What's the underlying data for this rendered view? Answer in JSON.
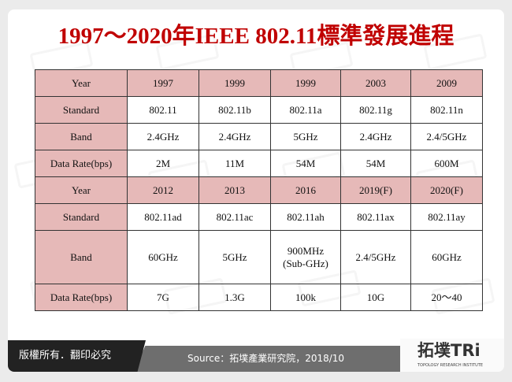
{
  "title": "1997～2020年IEEE 802.11標準發展進程",
  "table": {
    "rows": [
      [
        "Year",
        "1997",
        "1999",
        "1999",
        "2003",
        "2009"
      ],
      [
        "Standard",
        "802.11",
        "802.11b",
        "802.11a",
        "802.11g",
        "802.11n"
      ],
      [
        "Band",
        "2.4GHz",
        "2.4GHz",
        "5GHz",
        "2.4GHz",
        "2.4/5GHz"
      ],
      [
        "Data Rate(bps)",
        "2M",
        "11M",
        "54M",
        "54M",
        "600M"
      ],
      [
        "Year",
        "2012",
        "2013",
        "2016",
        "2019(F)",
        "2020(F)"
      ],
      [
        "Standard",
        "802.11ad",
        "802.11ac",
        "802.11ah",
        "802.11ax",
        "802.11ay"
      ],
      [
        "Band",
        "60GHz",
        "5GHz",
        "900MHz\n(Sub-GHz)",
        "2.4/5GHz",
        "60GHz"
      ],
      [
        "Data Rate(bps)",
        "7G",
        "1.3G",
        "100k",
        "10G",
        "20～40"
      ]
    ]
  },
  "footer": {
    "copyright": "版權所有．翻印必究",
    "source": "Source：拓墣產業研究院，2018/10",
    "logo_text": "拓墣TRi",
    "logo_sub": "TOPOLOGY RESEARCH INSTITUTE"
  },
  "colors": {
    "title": "#c00000",
    "header_fill": "#e6b9b8"
  }
}
